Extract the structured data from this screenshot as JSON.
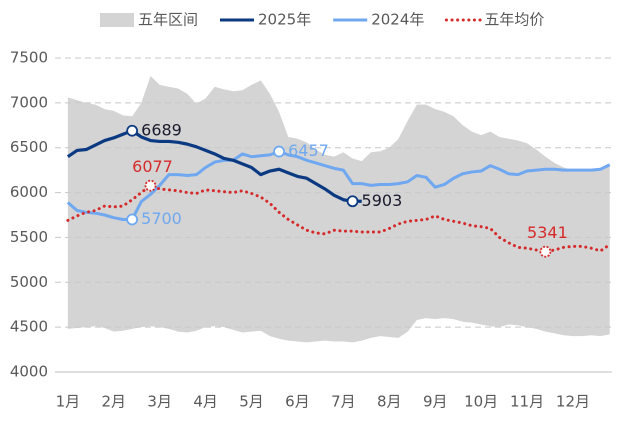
{
  "chart_data": {
    "type": "line",
    "x": [
      1.0,
      1.2,
      1.4,
      1.6,
      1.8,
      2.0,
      2.2,
      2.4,
      2.6,
      2.8,
      3.0,
      3.2,
      3.4,
      3.6,
      3.8,
      4.0,
      4.2,
      4.4,
      4.6,
      4.8,
      5.0,
      5.2,
      5.4,
      5.6,
      5.8,
      6.0,
      6.2,
      6.4,
      6.6,
      6.8,
      7.0,
      7.2,
      7.4,
      7.6,
      7.8,
      8.0,
      8.2,
      8.4,
      8.6,
      8.8,
      9.0,
      9.2,
      9.4,
      9.6,
      9.8,
      10.0,
      10.2,
      10.4,
      10.6,
      10.8,
      11.0,
      11.2,
      11.4,
      11.6,
      11.8,
      12.0,
      12.2,
      12.4,
      12.6,
      12.8
    ],
    "xlim": [
      0.72,
      12.85
    ],
    "xticks": [
      {
        "value": 1,
        "label": "1月"
      },
      {
        "value": 2,
        "label": "2月"
      },
      {
        "value": 3,
        "label": "3月"
      },
      {
        "value": 4,
        "label": "4月"
      },
      {
        "value": 5,
        "label": "5月"
      },
      {
        "value": 6,
        "label": "6月"
      },
      {
        "value": 7,
        "label": "7月"
      },
      {
        "value": 8,
        "label": "8月"
      },
      {
        "value": 9,
        "label": "9月"
      },
      {
        "value": 10,
        "label": "10月"
      },
      {
        "value": 11,
        "label": "11月"
      },
      {
        "value": 12,
        "label": "12月"
      }
    ],
    "ylim": [
      4000,
      7500
    ],
    "yticks": [
      4000,
      4500,
      5000,
      5500,
      6000,
      6500,
      7000,
      7500
    ],
    "grid": true,
    "legend": "top",
    "series": [
      {
        "name": "五年区间",
        "type": "area",
        "color": "#d4d4d4",
        "upper": [
          7060,
          7030,
          7000,
          6980,
          6930,
          6910,
          6860,
          6850,
          7000,
          7300,
          7200,
          7180,
          7160,
          7100,
          6990,
          7050,
          7180,
          7150,
          7130,
          7140,
          7200,
          7250,
          7100,
          6900,
          6620,
          6600,
          6560,
          6480,
          6420,
          6400,
          6450,
          6380,
          6350,
          6450,
          6460,
          6500,
          6600,
          6800,
          6980,
          6980,
          6930,
          6900,
          6850,
          6750,
          6680,
          6640,
          6680,
          6620,
          6600,
          6580,
          6550,
          6480,
          6400,
          6330,
          6280,
          6250,
          6250,
          6250,
          6260,
          6300
        ],
        "lower": [
          4480,
          4490,
          4500,
          4510,
          4490,
          4450,
          4460,
          4480,
          4500,
          4510,
          4500,
          4480,
          4450,
          4440,
          4460,
          4500,
          4510,
          4500,
          4470,
          4440,
          4450,
          4460,
          4400,
          4370,
          4350,
          4340,
          4330,
          4340,
          4350,
          4340,
          4340,
          4330,
          4350,
          4380,
          4400,
          4390,
          4380,
          4450,
          4580,
          4600,
          4590,
          4600,
          4590,
          4560,
          4550,
          4530,
          4510,
          4500,
          4530,
          4520,
          4500,
          4480,
          4450,
          4430,
          4410,
          4400,
          4400,
          4410,
          4400,
          4420
        ]
      },
      {
        "name": "2025年",
        "type": "line",
        "color": "#0b3a82",
        "values": [
          6400,
          6470,
          6480,
          6530,
          6580,
          6610,
          6650,
          6689,
          6620,
          6580,
          6570,
          6570,
          6560,
          6540,
          6510,
          6470,
          6430,
          6380,
          6360,
          6320,
          6280,
          6200,
          6240,
          6260,
          6220,
          6180,
          6160,
          6100,
          6040,
          5970,
          5920,
          5903,
          5903,
          null,
          null,
          null,
          null,
          null,
          null,
          null,
          null,
          null,
          null,
          null,
          null,
          null,
          null,
          null,
          null,
          null,
          null,
          null,
          null,
          null,
          null,
          null,
          null,
          null,
          null,
          null
        ]
      },
      {
        "name": "2024年",
        "type": "line",
        "color": "#6fa8f0",
        "values": [
          5890,
          5800,
          5780,
          5770,
          5750,
          5720,
          5700,
          5700,
          5900,
          5980,
          6080,
          6200,
          6200,
          6190,
          6200,
          6280,
          6340,
          6360,
          6360,
          6430,
          6400,
          6410,
          6420,
          6457,
          6420,
          6400,
          6360,
          6330,
          6300,
          6270,
          6250,
          6100,
          6100,
          6080,
          6090,
          6090,
          6100,
          6120,
          6190,
          6170,
          6060,
          6090,
          6160,
          6210,
          6230,
          6240,
          6300,
          6260,
          6210,
          6200,
          6240,
          6250,
          6260,
          6260,
          6250,
          6250,
          6250,
          6250,
          6260,
          6310
        ]
      },
      {
        "name": "五年均价",
        "type": "dotted",
        "color": "#d62a2a",
        "values": [
          5690,
          5740,
          5780,
          5800,
          5850,
          5840,
          5850,
          5920,
          6000,
          6077,
          6040,
          6030,
          6020,
          6000,
          5990,
          6030,
          6020,
          6010,
          6000,
          6020,
          5990,
          5950,
          5880,
          5780,
          5700,
          5640,
          5580,
          5550,
          5540,
          5580,
          5570,
          5570,
          5560,
          5560,
          5560,
          5600,
          5650,
          5680,
          5690,
          5700,
          5740,
          5700,
          5680,
          5660,
          5630,
          5620,
          5600,
          5500,
          5440,
          5390,
          5380,
          5360,
          5341,
          5360,
          5390,
          5400,
          5400,
          5380,
          5350,
          5420
        ]
      }
    ],
    "annotations": [
      {
        "series": 1,
        "index": 7
      },
      {
        "series": 1,
        "index": 31
      },
      {
        "series": 2,
        "index": 7
      },
      {
        "series": 2,
        "index": 23
      },
      {
        "series": 3,
        "index": 9
      },
      {
        "series": 3,
        "index": 52
      }
    ]
  }
}
